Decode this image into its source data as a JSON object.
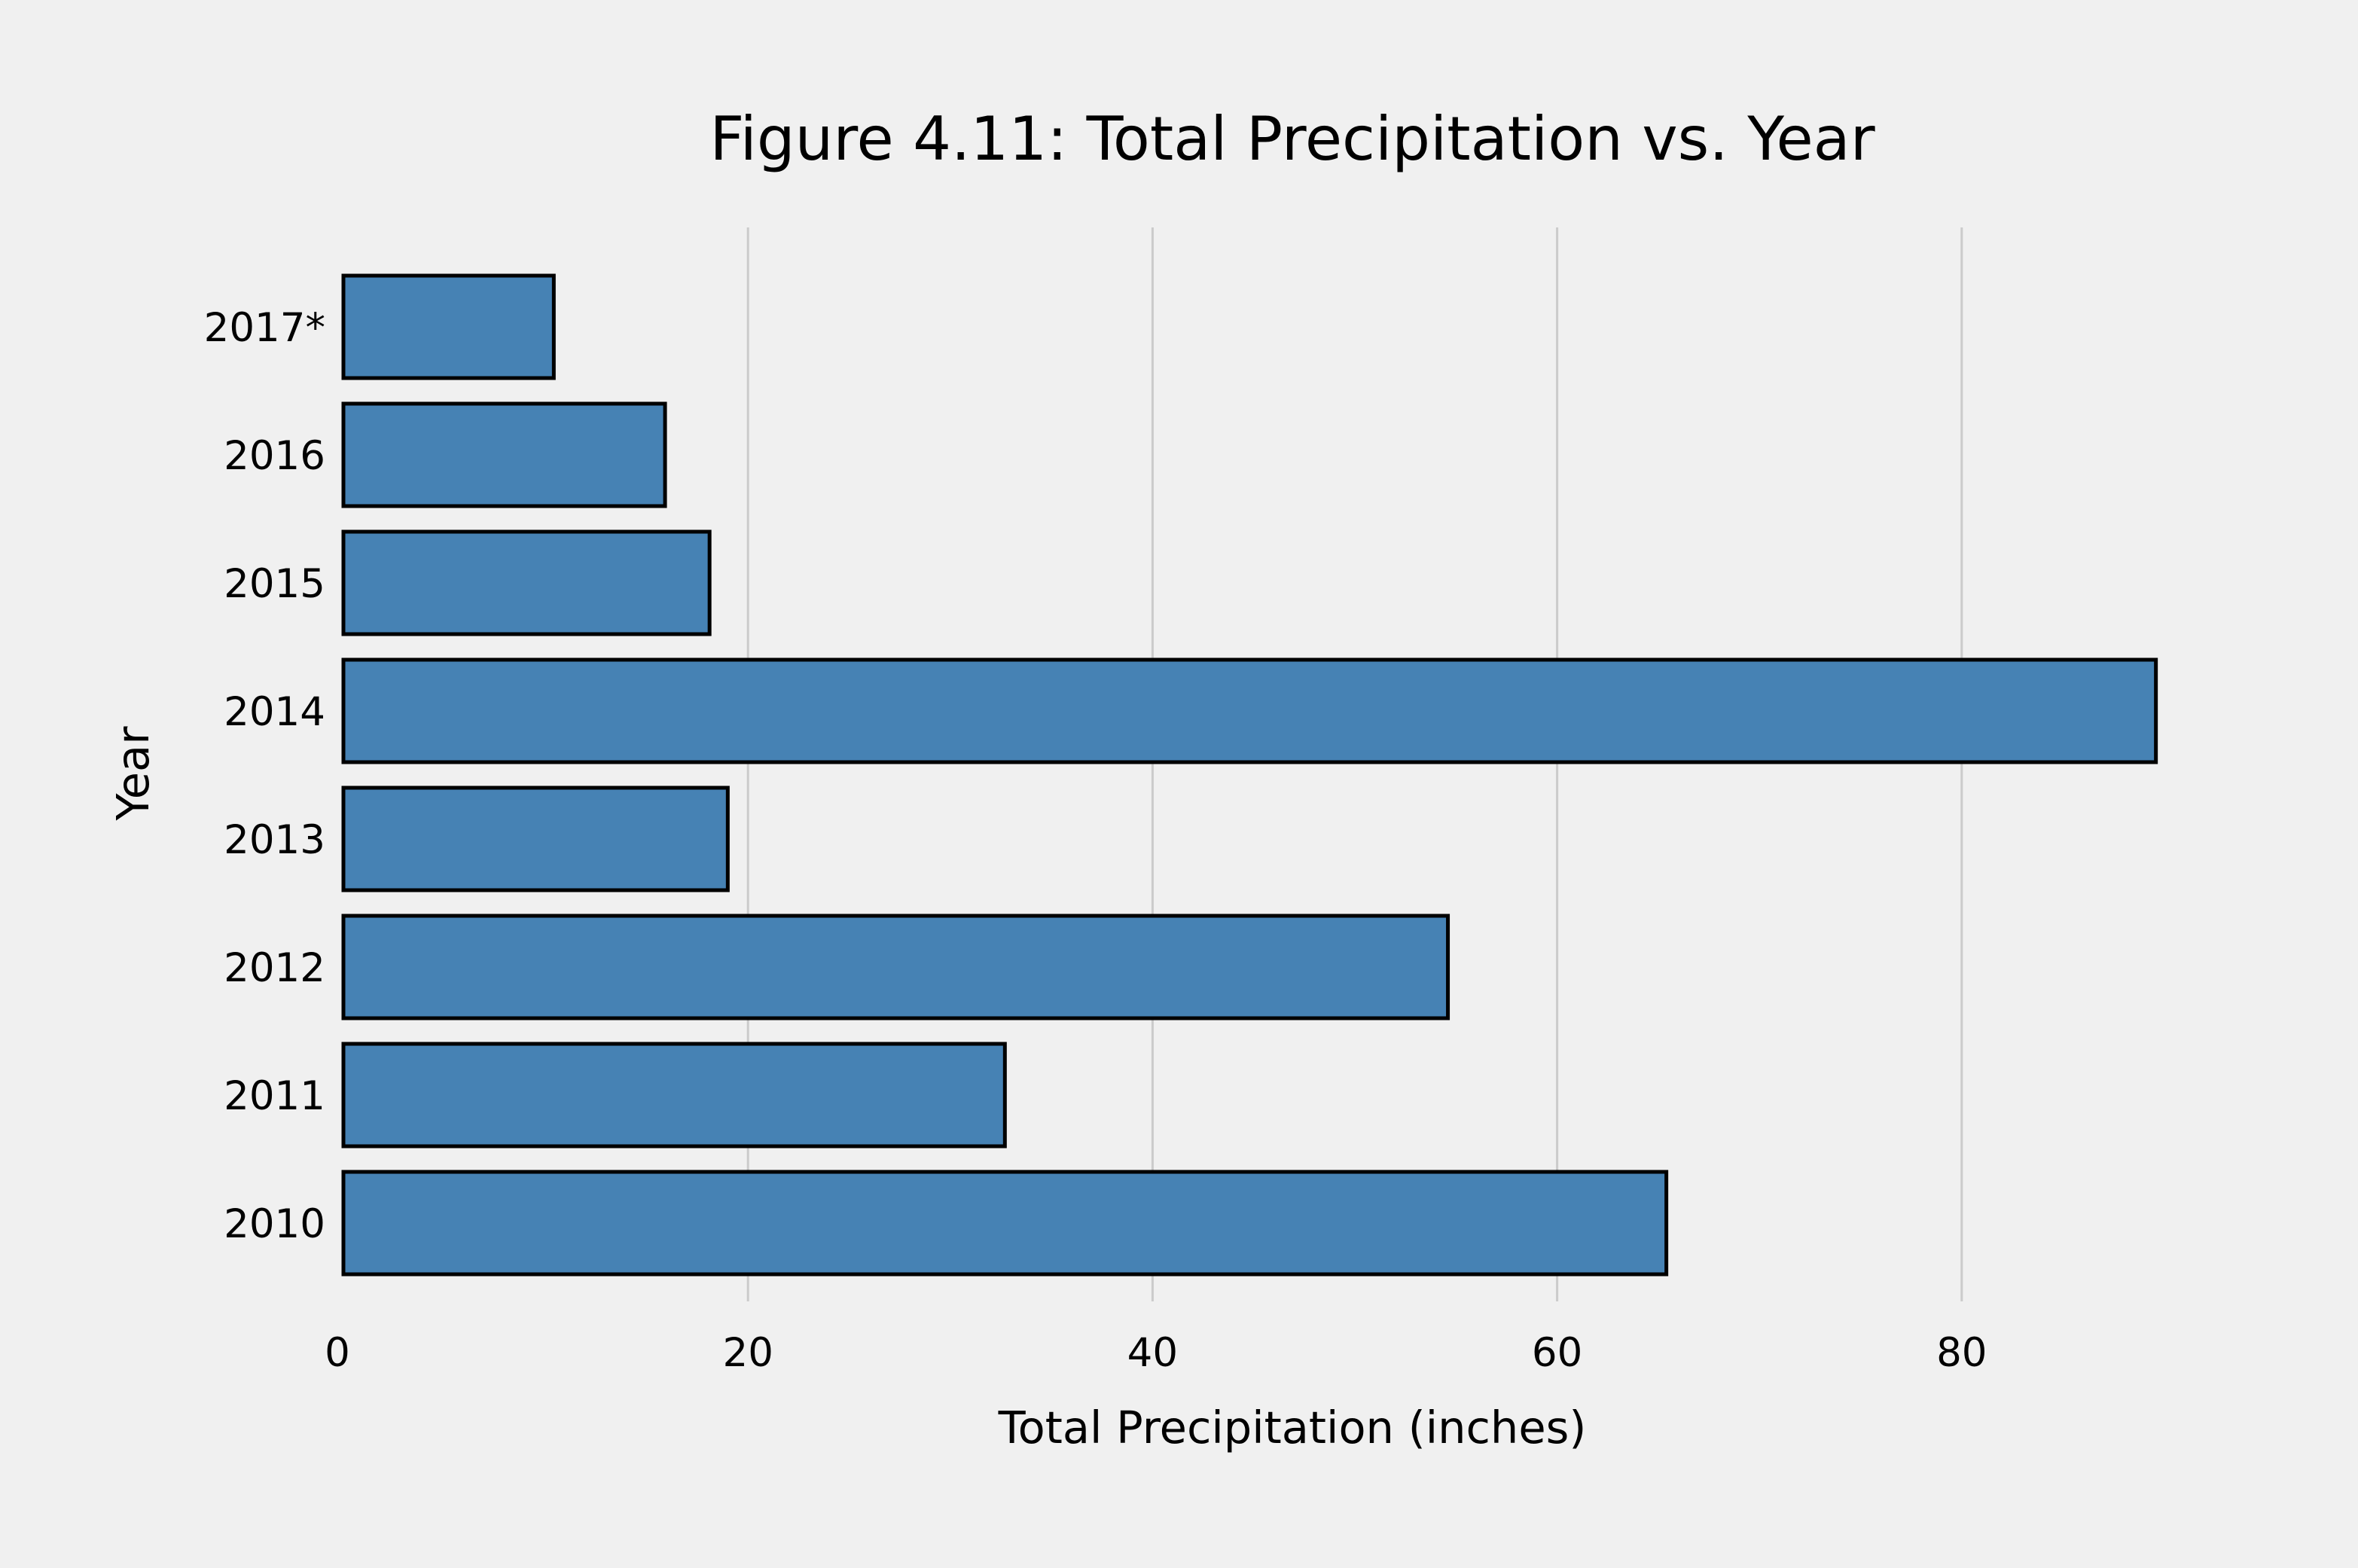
{
  "chart_data": {
    "type": "bar",
    "orientation": "horizontal",
    "title": "Figure 4.11: Total Precipitation vs. Year",
    "xlabel": "Total Precipitation (inches)",
    "ylabel": "Year",
    "categories": [
      "2010",
      "2011",
      "2012",
      "2013",
      "2014",
      "2015",
      "2016",
      "2017*"
    ],
    "values": [
      65.4,
      32.7,
      54.6,
      19.0,
      89.6,
      18.1,
      15.9,
      10.4
    ],
    "x_ticks": [
      "0",
      "20",
      "40",
      "60",
      "80"
    ],
    "xlim": [
      0,
      95
    ],
    "grid": "vertical",
    "legend": "none",
    "colors": {
      "background": "#f0f0f0",
      "bar_fill": "#4682b4",
      "bar_edge": "#000000",
      "grid": "#cbcbcb"
    }
  }
}
